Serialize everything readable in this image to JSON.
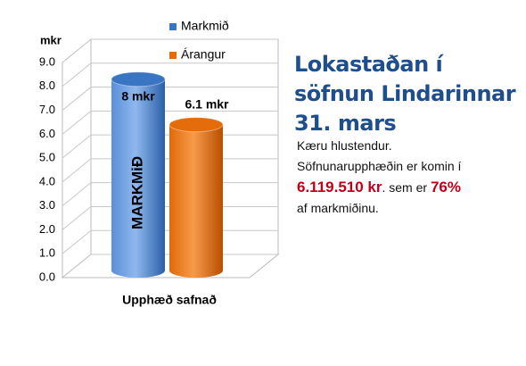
{
  "chart_data": {
    "type": "bar",
    "ylabel": "mkr",
    "categories": [
      "Upphæð safnað"
    ],
    "series": [
      {
        "name": "Markmið",
        "color": "#3a75c4",
        "values": [
          8
        ],
        "value_labels": [
          "8 mkr"
        ]
      },
      {
        "name": "Árangur",
        "color": "#e46c0a",
        "values": [
          6.1
        ],
        "value_labels": [
          "6.1 mkr"
        ]
      }
    ],
    "ylim": [
      0,
      9
    ],
    "yticks": [
      {
        "value": 0,
        "label": "0.0"
      },
      {
        "value": 1,
        "label": "1.0"
      },
      {
        "value": 2,
        "label": "2.0"
      },
      {
        "value": 3,
        "label": "3.0"
      },
      {
        "value": 4,
        "label": "4.0"
      },
      {
        "value": 5,
        "label": "5.0"
      },
      {
        "value": 6,
        "label": "6.0"
      },
      {
        "value": 7,
        "label": "7.0"
      },
      {
        "value": 8,
        "label": "8.0"
      },
      {
        "value": 9,
        "label": "9.0"
      }
    ],
    "grid": true,
    "bar_annotation": "MARKMiÐ",
    "side_title": "Lokastaðan í söfnun Lindarinnar 31. mars",
    "side_text": {
      "line1": "Kæru hlustendur.",
      "line2": "Söfnunarupphæðin er komin í",
      "amount": "6.119.510 kr",
      "mid": ". sem er",
      "percent": "76%",
      "end": "af markmiðinu."
    }
  }
}
